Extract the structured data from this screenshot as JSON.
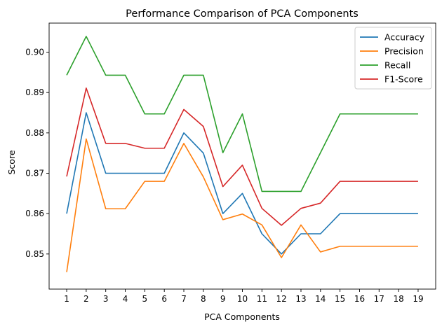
{
  "chart_data": {
    "type": "line",
    "title": "Performance Comparison of PCA Components",
    "xlabel": "PCA Components",
    "ylabel": "Score",
    "x": [
      1,
      2,
      3,
      4,
      5,
      6,
      7,
      8,
      9,
      10,
      11,
      12,
      13,
      14,
      15,
      16,
      17,
      18,
      19
    ],
    "xlim": [
      0.1,
      19.9
    ],
    "ylim": [
      0.8413,
      0.9072
    ],
    "yticks": [
      0.85,
      0.86,
      0.87,
      0.88,
      0.89,
      0.9
    ],
    "ytick_labels": [
      "0.85",
      "0.86",
      "0.87",
      "0.88",
      "0.89",
      "0.90"
    ],
    "grid": false,
    "legend_position": "top-right",
    "series": [
      {
        "name": "Accuracy",
        "color": "#1f77b4",
        "values": [
          0.86,
          0.885,
          0.87,
          0.87,
          0.87,
          0.87,
          0.88,
          0.875,
          0.86,
          0.865,
          0.855,
          0.85,
          0.855,
          0.855,
          0.86,
          0.86,
          0.86,
          0.86,
          0.86
        ]
      },
      {
        "name": "Precision",
        "color": "#ff7f0e",
        "values": [
          0.8455,
          0.8785,
          0.8612,
          0.8612,
          0.868,
          0.868,
          0.8774,
          0.8691,
          0.8585,
          0.8599,
          0.8572,
          0.8491,
          0.8572,
          0.8505,
          0.8519,
          0.8519,
          0.8519,
          0.8519,
          0.8519
        ]
      },
      {
        "name": "Recall",
        "color": "#2ca02c",
        "values": [
          0.8943,
          0.9039,
          0.8943,
          0.8943,
          0.8847,
          0.8847,
          0.8943,
          0.8943,
          0.8751,
          0.8847,
          0.8655,
          0.8655,
          0.8655,
          0.8751,
          0.8847,
          0.8847,
          0.8847,
          0.8847,
          0.8847
        ]
      },
      {
        "name": "F1-Score",
        "color": "#d62728",
        "values": [
          0.8692,
          0.8911,
          0.8774,
          0.8774,
          0.8762,
          0.8762,
          0.8858,
          0.8816,
          0.8667,
          0.872,
          0.8613,
          0.8571,
          0.8613,
          0.8626,
          0.868,
          0.868,
          0.868,
          0.868,
          0.868
        ]
      }
    ]
  }
}
